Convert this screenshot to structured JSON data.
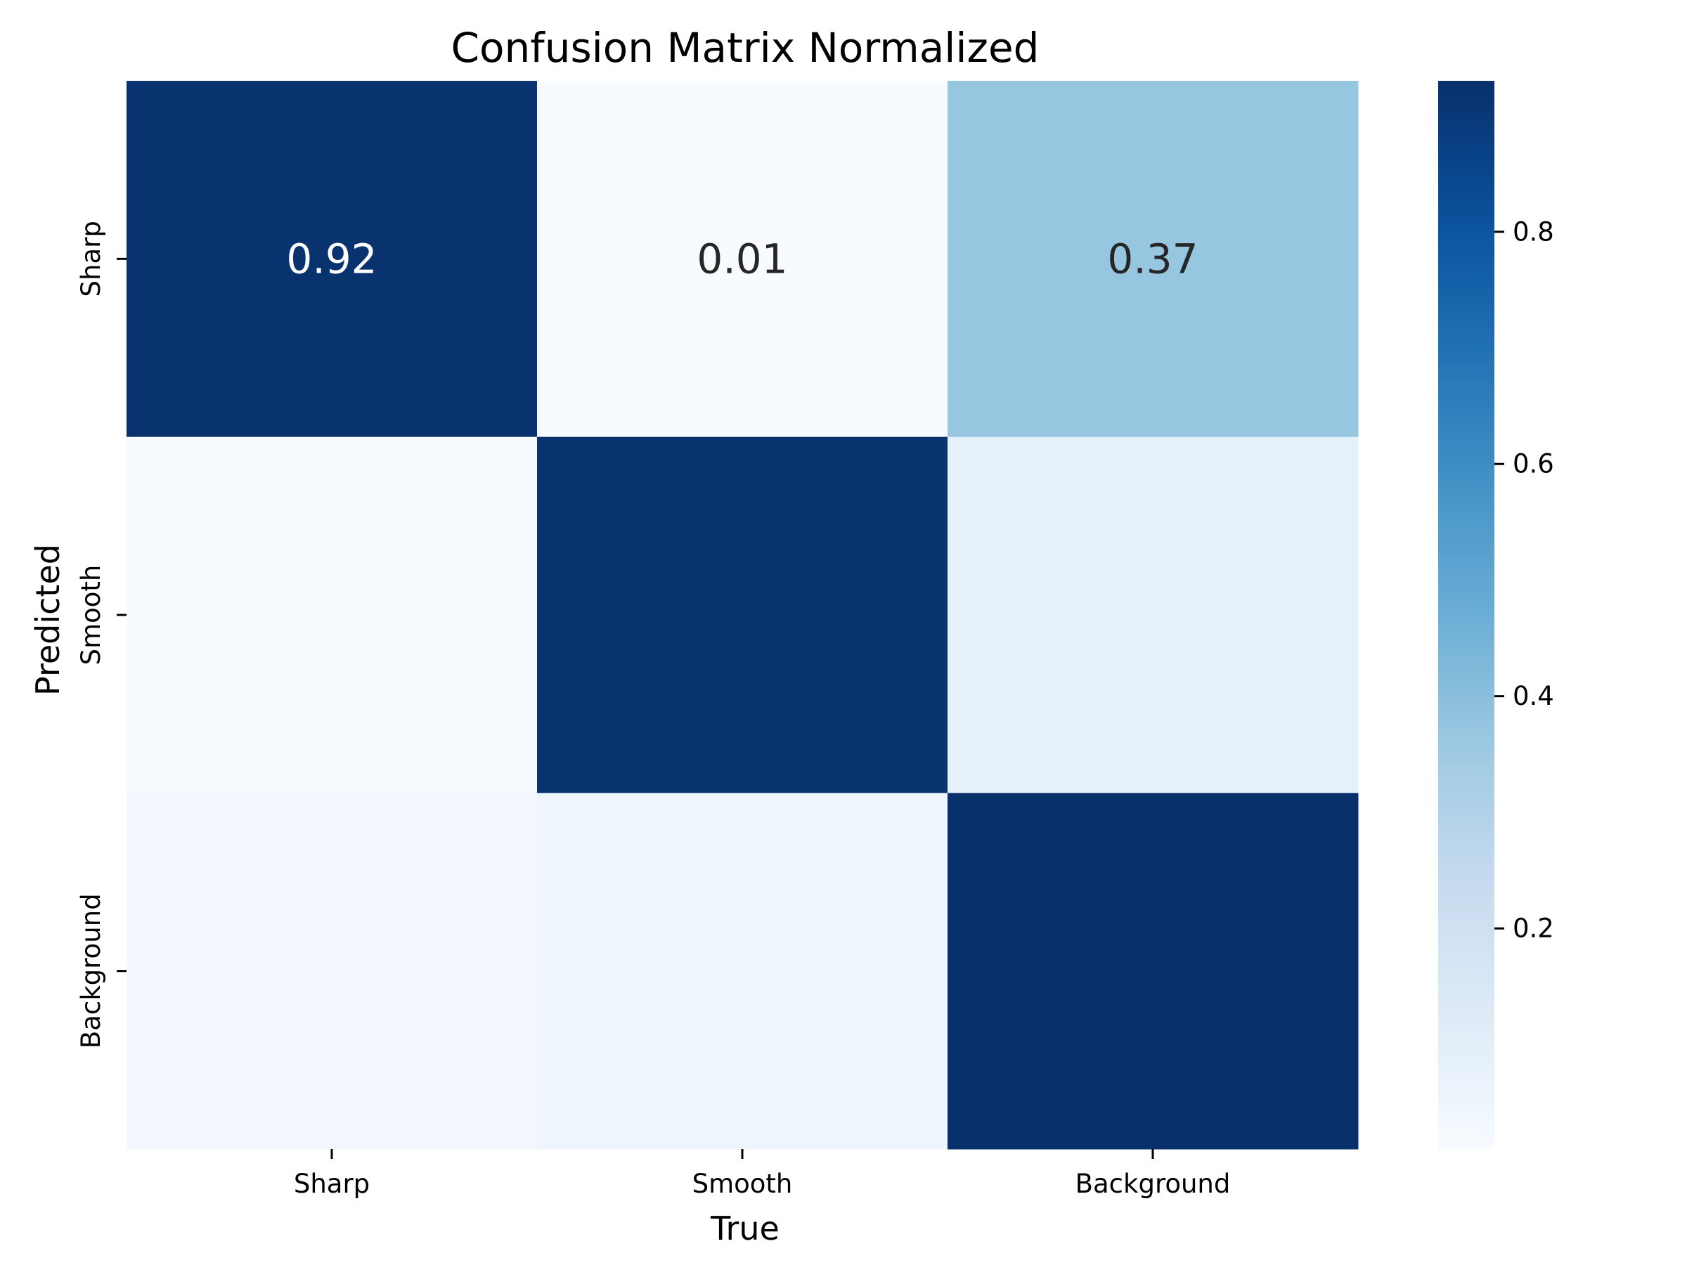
{
  "chart_data": {
    "type": "heatmap",
    "title": "Confusion Matrix Normalized",
    "xlabel": "True",
    "ylabel": "Predicted",
    "x_categories": [
      "Sharp",
      "Smooth",
      "Background"
    ],
    "y_categories": [
      "Sharp",
      "Smooth",
      "Background"
    ],
    "values": [
      [
        0.92,
        0.01,
        0.37
      ],
      [
        0.01,
        0.92,
        0.09
      ],
      [
        0.03,
        0.05,
        0.93
      ]
    ],
    "cell_labels": [
      [
        "0.92",
        "0.01",
        "0.37"
      ],
      [
        "",
        "",
        ""
      ],
      [
        "",
        "",
        ""
      ]
    ],
    "colormap": "Blues",
    "vmin": 0.01,
    "vmax": 0.93,
    "colorbar_ticks": [
      0.2,
      0.4,
      0.6,
      0.8
    ],
    "colorbar_tick_labels": [
      "0.2",
      "0.4",
      "0.6",
      "0.8"
    ]
  }
}
